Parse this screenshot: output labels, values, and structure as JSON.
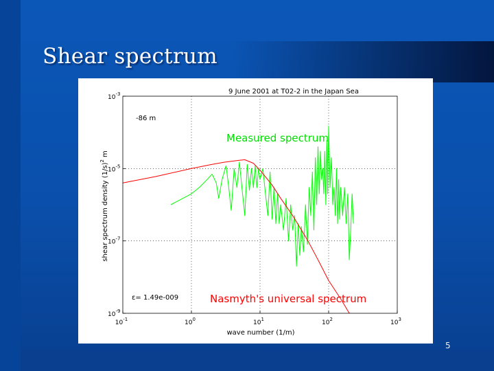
{
  "slide": {
    "title": "Shear spectrum",
    "number": "5"
  },
  "colors": {
    "background": "#0b57b8",
    "measured": "#00ff00",
    "model": "#ff0000",
    "measured_label": "#00e000",
    "model_label": "#ff0000"
  },
  "chart_data": {
    "type": "line",
    "title": "9 June 2001 at T02-2 in the Japan Sea",
    "xlabel": "wave number (1/m)",
    "ylabel_main": "shear spectrum density (1/s)",
    "ylabel_sup": "2",
    "ylabel_tail": "m",
    "xscale": "log",
    "yscale": "log",
    "xlim": [
      0.1,
      1000
    ],
    "ylim": [
      1e-09,
      0.001
    ],
    "grid": true,
    "x_ticks": [
      {
        "base": "10",
        "exp": "-1",
        "value": 0.1
      },
      {
        "base": "10",
        "exp": "0",
        "value": 1
      },
      {
        "base": "10",
        "exp": "1",
        "value": 10
      },
      {
        "base": "10",
        "exp": "2",
        "value": 100
      },
      {
        "base": "10",
        "exp": "3",
        "value": 1000
      }
    ],
    "y_ticks": [
      {
        "base": "10",
        "exp": "-9",
        "value": 1e-09
      },
      {
        "base": "10",
        "exp": "-7",
        "value": 1e-07
      },
      {
        "base": "10",
        "exp": "-5",
        "value": 1e-05
      },
      {
        "base": "10",
        "exp": "-3",
        "value": 0.001
      }
    ],
    "annotations": {
      "depth": "-86 m",
      "epsilon": "ε=  1.49e-009",
      "measured_label": "Measured spectrum",
      "model_label": "Nasmyth's universal spectrum"
    },
    "series": [
      {
        "name": "Nasmyth's universal spectrum",
        "color": "#ff0000",
        "x": [
          0.1,
          0.3,
          1,
          2,
          3,
          5,
          6,
          8,
          10,
          15,
          20,
          30,
          50,
          70,
          100,
          150,
          200
        ],
        "y": [
          4e-06,
          6e-06,
          1e-05,
          1.3e-05,
          1.5e-05,
          1.7e-05,
          1.75e-05,
          1.4e-05,
          9e-06,
          3.5e-06,
          1.5e-06,
          5e-07,
          1e-07,
          3e-08,
          8e-09,
          2.5e-09,
          1e-09
        ]
      },
      {
        "name": "Measured spectrum",
        "color": "#00ff00",
        "x": [
          0.5,
          0.7,
          1,
          1.3,
          1.7,
          2,
          2.3,
          2.5,
          2.8,
          3.2,
          3.5,
          3.8,
          4.2,
          4.6,
          5,
          5.5,
          6,
          6.5,
          7,
          7.5,
          8,
          8.5,
          9,
          9.5,
          10,
          11,
          12,
          13,
          14,
          15,
          16,
          17,
          18,
          19,
          20,
          22,
          24,
          26,
          28,
          30,
          32,
          34,
          36,
          38,
          40,
          43,
          46,
          49,
          52,
          55,
          58,
          61,
          64,
          67,
          70,
          73,
          76,
          79,
          82,
          85,
          88,
          91,
          94,
          97,
          100,
          105,
          110,
          115,
          120,
          125,
          130,
          135,
          140,
          145,
          150,
          160,
          170,
          180,
          190,
          200,
          210,
          220,
          230
        ],
        "y": [
          1e-06,
          1.4e-06,
          2e-06,
          3e-06,
          5e-06,
          7e-06,
          4e-06,
          1.5e-06,
          5e-06,
          1.2e-05,
          3e-06,
          7e-07,
          1e-05,
          3e-06,
          1.5e-05,
          2.5e-06,
          5e-07,
          1.3e-05,
          2.5e-06,
          1e-05,
          3e-06,
          1.2e-05,
          3e-06,
          1e-05,
          5e-06,
          1e-05,
          2e-06,
          5e-07,
          8e-06,
          4e-07,
          3e-06,
          3e-07,
          2e-06,
          3e-07,
          1e-06,
          2e-07,
          1.5e-06,
          1e-07,
          1e-06,
          2e-07,
          5e-07,
          2e-08,
          3e-07,
          4e-08,
          2.5e-07,
          5e-08,
          1e-06,
          8e-08,
          3e-06,
          5e-07,
          8e-06,
          2e-07,
          2e-05,
          1e-06,
          4e-05,
          2e-06,
          3e-05,
          5e-06,
          1e-05,
          2e-06,
          3e-05,
          1e-06,
          6e-05,
          2e-06,
          0.00015,
          3e-06,
          2e-05,
          1e-06,
          3e-06,
          5e-07,
          1e-05,
          3e-07,
          5e-06,
          4e-07,
          3e-06,
          5e-07,
          3e-06,
          3e-07,
          2e-06,
          3e-08,
          2e-07,
          2e-06,
          3e-07
        ]
      }
    ]
  }
}
